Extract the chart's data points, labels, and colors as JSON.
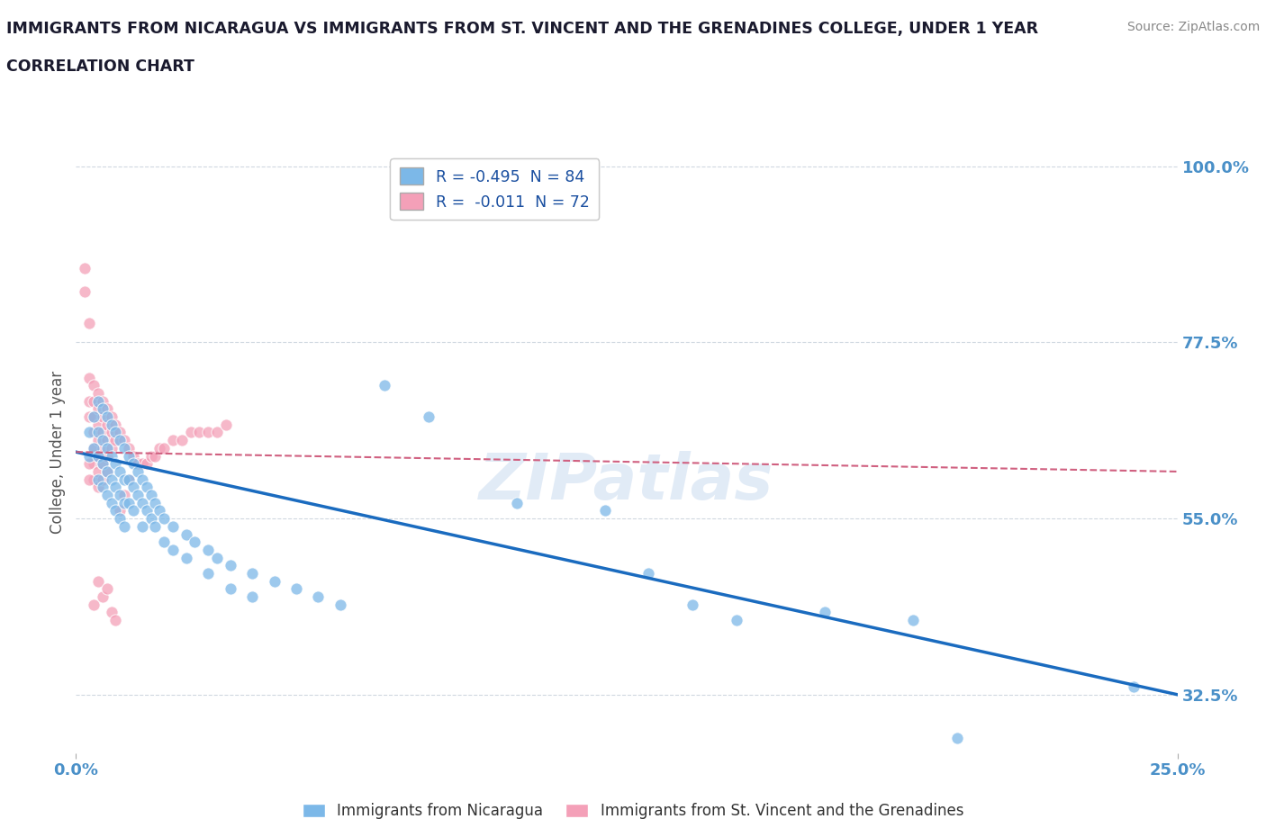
{
  "title_line1": "IMMIGRANTS FROM NICARAGUA VS IMMIGRANTS FROM ST. VINCENT AND THE GRENADINES COLLEGE, UNDER 1 YEAR",
  "title_line2": "CORRELATION CHART",
  "source_text": "Source: ZipAtlas.com",
  "ylabel": "College, Under 1 year",
  "xmin": 0.0,
  "xmax": 0.25,
  "ymin": 0.25,
  "ymax": 1.02,
  "yticks": [
    0.325,
    0.55,
    0.775,
    1.0
  ],
  "ytick_labels": [
    "32.5%",
    "55.0%",
    "77.5%",
    "100.0%"
  ],
  "xtick_labels": [
    "0.0%",
    "25.0%"
  ],
  "watermark": "ZIPatlas",
  "legend_R1": "R = -0.495  N = 84",
  "legend_R2": "R =  -0.011  N = 72",
  "legend_bottom_labels": [
    "Immigrants from Nicaragua",
    "Immigrants from St. Vincent and the Grenadines"
  ],
  "blue_color": "#7cb8e8",
  "pink_color": "#f4a0b8",
  "blue_line_color": "#1a6bbf",
  "pink_line_color": "#d06080",
  "axis_label_color": "#4a90c8",
  "blue_scatter": [
    [
      0.003,
      0.66
    ],
    [
      0.003,
      0.63
    ],
    [
      0.004,
      0.68
    ],
    [
      0.004,
      0.64
    ],
    [
      0.005,
      0.7
    ],
    [
      0.005,
      0.66
    ],
    [
      0.005,
      0.63
    ],
    [
      0.005,
      0.6
    ],
    [
      0.006,
      0.69
    ],
    [
      0.006,
      0.65
    ],
    [
      0.006,
      0.62
    ],
    [
      0.006,
      0.59
    ],
    [
      0.007,
      0.68
    ],
    [
      0.007,
      0.64
    ],
    [
      0.007,
      0.61
    ],
    [
      0.007,
      0.58
    ],
    [
      0.008,
      0.67
    ],
    [
      0.008,
      0.63
    ],
    [
      0.008,
      0.6
    ],
    [
      0.008,
      0.57
    ],
    [
      0.009,
      0.66
    ],
    [
      0.009,
      0.62
    ],
    [
      0.009,
      0.59
    ],
    [
      0.009,
      0.56
    ],
    [
      0.01,
      0.65
    ],
    [
      0.01,
      0.61
    ],
    [
      0.01,
      0.58
    ],
    [
      0.01,
      0.55
    ],
    [
      0.011,
      0.64
    ],
    [
      0.011,
      0.6
    ],
    [
      0.011,
      0.57
    ],
    [
      0.011,
      0.54
    ],
    [
      0.012,
      0.63
    ],
    [
      0.012,
      0.6
    ],
    [
      0.012,
      0.57
    ],
    [
      0.013,
      0.62
    ],
    [
      0.013,
      0.59
    ],
    [
      0.013,
      0.56
    ],
    [
      0.014,
      0.61
    ],
    [
      0.014,
      0.58
    ],
    [
      0.015,
      0.6
    ],
    [
      0.015,
      0.57
    ],
    [
      0.015,
      0.54
    ],
    [
      0.016,
      0.59
    ],
    [
      0.016,
      0.56
    ],
    [
      0.017,
      0.58
    ],
    [
      0.017,
      0.55
    ],
    [
      0.018,
      0.57
    ],
    [
      0.018,
      0.54
    ],
    [
      0.019,
      0.56
    ],
    [
      0.02,
      0.55
    ],
    [
      0.02,
      0.52
    ],
    [
      0.022,
      0.54
    ],
    [
      0.022,
      0.51
    ],
    [
      0.025,
      0.53
    ],
    [
      0.025,
      0.5
    ],
    [
      0.027,
      0.52
    ],
    [
      0.03,
      0.51
    ],
    [
      0.03,
      0.48
    ],
    [
      0.032,
      0.5
    ],
    [
      0.035,
      0.49
    ],
    [
      0.035,
      0.46
    ],
    [
      0.04,
      0.48
    ],
    [
      0.04,
      0.45
    ],
    [
      0.045,
      0.47
    ],
    [
      0.05,
      0.46
    ],
    [
      0.055,
      0.45
    ],
    [
      0.06,
      0.44
    ],
    [
      0.07,
      0.72
    ],
    [
      0.08,
      0.68
    ],
    [
      0.1,
      0.57
    ],
    [
      0.12,
      0.56
    ],
    [
      0.13,
      0.48
    ],
    [
      0.14,
      0.44
    ],
    [
      0.15,
      0.42
    ],
    [
      0.17,
      0.43
    ],
    [
      0.19,
      0.42
    ],
    [
      0.2,
      0.27
    ],
    [
      0.24,
      0.335
    ]
  ],
  "pink_scatter": [
    [
      0.002,
      0.87
    ],
    [
      0.002,
      0.84
    ],
    [
      0.003,
      0.8
    ],
    [
      0.003,
      0.73
    ],
    [
      0.003,
      0.7
    ],
    [
      0.003,
      0.68
    ],
    [
      0.004,
      0.72
    ],
    [
      0.004,
      0.7
    ],
    [
      0.004,
      0.68
    ],
    [
      0.004,
      0.66
    ],
    [
      0.004,
      0.64
    ],
    [
      0.004,
      0.62
    ],
    [
      0.004,
      0.6
    ],
    [
      0.005,
      0.71
    ],
    [
      0.005,
      0.69
    ],
    [
      0.005,
      0.67
    ],
    [
      0.005,
      0.65
    ],
    [
      0.005,
      0.63
    ],
    [
      0.005,
      0.61
    ],
    [
      0.005,
      0.59
    ],
    [
      0.006,
      0.7
    ],
    [
      0.006,
      0.68
    ],
    [
      0.006,
      0.66
    ],
    [
      0.006,
      0.64
    ],
    [
      0.006,
      0.62
    ],
    [
      0.006,
      0.6
    ],
    [
      0.007,
      0.69
    ],
    [
      0.007,
      0.67
    ],
    [
      0.007,
      0.65
    ],
    [
      0.007,
      0.63
    ],
    [
      0.007,
      0.61
    ],
    [
      0.008,
      0.68
    ],
    [
      0.008,
      0.66
    ],
    [
      0.008,
      0.64
    ],
    [
      0.009,
      0.67
    ],
    [
      0.009,
      0.65
    ],
    [
      0.01,
      0.66
    ],
    [
      0.011,
      0.65
    ],
    [
      0.012,
      0.64
    ],
    [
      0.013,
      0.63
    ],
    [
      0.014,
      0.62
    ],
    [
      0.004,
      0.44
    ],
    [
      0.005,
      0.47
    ],
    [
      0.006,
      0.45
    ],
    [
      0.007,
      0.46
    ],
    [
      0.008,
      0.43
    ],
    [
      0.009,
      0.42
    ],
    [
      0.01,
      0.56
    ],
    [
      0.011,
      0.58
    ],
    [
      0.012,
      0.6
    ],
    [
      0.014,
      0.62
    ],
    [
      0.015,
      0.62
    ],
    [
      0.016,
      0.62
    ],
    [
      0.017,
      0.63
    ],
    [
      0.018,
      0.63
    ],
    [
      0.019,
      0.64
    ],
    [
      0.02,
      0.64
    ],
    [
      0.022,
      0.65
    ],
    [
      0.024,
      0.65
    ],
    [
      0.026,
      0.66
    ],
    [
      0.028,
      0.66
    ],
    [
      0.03,
      0.66
    ],
    [
      0.032,
      0.66
    ],
    [
      0.034,
      0.67
    ],
    [
      0.003,
      0.62
    ],
    [
      0.003,
      0.6
    ]
  ],
  "blue_line_x": [
    0.0,
    0.25
  ],
  "blue_line_y": [
    0.635,
    0.325
  ],
  "pink_line_x": [
    0.0,
    0.25
  ],
  "pink_line_y": [
    0.635,
    0.61
  ]
}
